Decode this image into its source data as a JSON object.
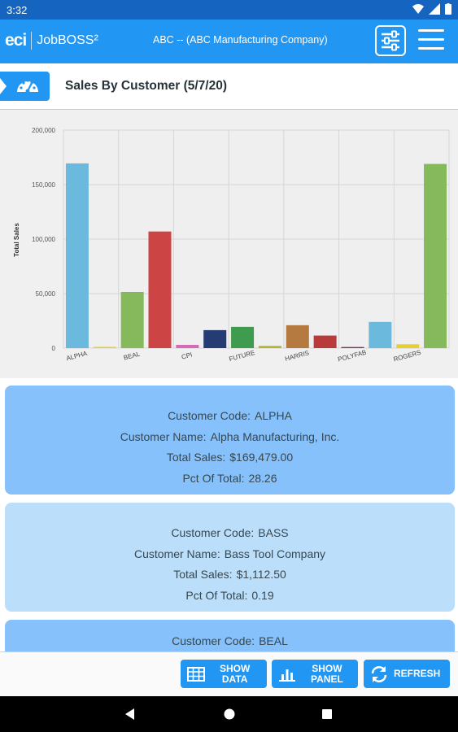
{
  "status": {
    "time": "3:32"
  },
  "header": {
    "brand_eci": "eci",
    "brand_product": "JobBOSS²",
    "company": "ABC -- (ABC Manufacturing Company)"
  },
  "page": {
    "title": "Sales By Customer (5/7/20)"
  },
  "chart_data": {
    "type": "bar",
    "ylabel": "Total Sales",
    "xlabel": "",
    "ylim": [
      0,
      200000
    ],
    "yticks": [
      "0",
      "50,000",
      "100,000",
      "150,000",
      "200,000"
    ],
    "grid": true,
    "x_tick_labels": [
      "ALPHA",
      "BEAL",
      "CPI",
      "FUTURE",
      "HARRIS",
      "POLYFAB",
      "ROGERS"
    ],
    "bars": [
      {
        "value": 169479,
        "color": "#6bb9dd"
      },
      {
        "value": 1112.5,
        "color": "#e8cf2f"
      },
      {
        "value": 51500,
        "color": "#86b95c"
      },
      {
        "value": 107000,
        "color": "#cc4444"
      },
      {
        "value": 3000,
        "color": "#d46bb5"
      },
      {
        "value": 16500,
        "color": "#253b73"
      },
      {
        "value": 19500,
        "color": "#3f9b4e"
      },
      {
        "value": 2000,
        "color": "#b3b62d"
      },
      {
        "value": 21000,
        "color": "#b47a3f"
      },
      {
        "value": 11500,
        "color": "#b83b3b"
      },
      {
        "value": 1000,
        "color": "#7e2f66"
      },
      {
        "value": 24000,
        "color": "#6bb9dd"
      },
      {
        "value": 3500,
        "color": "#e8cf2f"
      },
      {
        "value": 169000,
        "color": "#86b95c"
      }
    ]
  },
  "cards": [
    {
      "code_label": "Customer Code:",
      "code": "ALPHA",
      "name_label": "Customer Name:",
      "name": "Alpha Manufacturing, Inc.",
      "sales_label": "Total Sales:",
      "sales": "$169,479.00",
      "pct_label": "Pct Of Total:",
      "pct": "28.26"
    },
    {
      "code_label": "Customer Code:",
      "code": "BASS",
      "name_label": "Customer Name:",
      "name": "Bass Tool Company",
      "sales_label": "Total Sales:",
      "sales": "$1,112.50",
      "pct_label": "Pct Of Total:",
      "pct": "0.19"
    },
    {
      "code_label": "Customer Code:",
      "code": "BEAL"
    }
  ],
  "toolbar": {
    "show_data_l1": "SHOW",
    "show_data_l2": "DATA",
    "show_panel_l1": "SHOW",
    "show_panel_l2": "PANEL",
    "refresh": "REFRESH"
  },
  "colors": {
    "primary": "#2196f3",
    "status_bar": "#1565c0",
    "card_selected": "#86c1fb",
    "card": "#bbdefb"
  }
}
